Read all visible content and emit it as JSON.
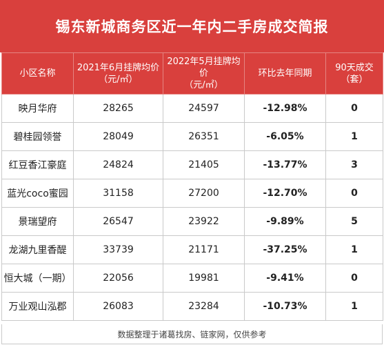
{
  "title": "锡东新城商务区近一年内二手房成交简报",
  "headers": {
    "name": "小区名称",
    "price_2021_line1": "2021年6月挂牌均价",
    "price_2021_line2": "（元/㎡）",
    "price_2022_line1": "2022年5月挂牌均价",
    "price_2022_line2": "（元/㎡）",
    "yoy": "环比去年同期",
    "deals_line1": "90天成交",
    "deals_line2": "（套）"
  },
  "rows": [
    {
      "name": "映月华府",
      "price_2021": "28265",
      "price_2022": "24597",
      "yoy": "-12.98%",
      "deals": "0"
    },
    {
      "name": "碧桂园领誉",
      "price_2021": "28049",
      "price_2022": "26351",
      "yoy": "-6.05%",
      "deals": "1"
    },
    {
      "name": "红豆香江豪庭",
      "price_2021": "24824",
      "price_2022": "21405",
      "yoy": "-13.77%",
      "deals": "3"
    },
    {
      "name": "蓝光coco蜜园",
      "price_2021": "31158",
      "price_2022": "27200",
      "yoy": "-12.70%",
      "deals": "0"
    },
    {
      "name": "景瑞望府",
      "price_2021": "26547",
      "price_2022": "23922",
      "yoy": "-9.89%",
      "deals": "5"
    },
    {
      "name": "龙湖九里香醍",
      "price_2021": "33739",
      "price_2022": "21171",
      "yoy": "-37.25%",
      "deals": "1"
    },
    {
      "name": "恒大城（一期）",
      "price_2021": "22056",
      "price_2022": "19981",
      "yoy": "-9.41%",
      "deals": "0"
    },
    {
      "name": "万业观山泓郡",
      "price_2021": "26083",
      "price_2022": "23284",
      "yoy": "-10.73%",
      "deals": "1"
    }
  ],
  "footer": "数据整理于诸葛找房、链家网，仅供参考",
  "colors": {
    "header_bg": "#d9403d",
    "negative_pct": "#3a8f2f",
    "deal_count": "#cc2a27"
  }
}
